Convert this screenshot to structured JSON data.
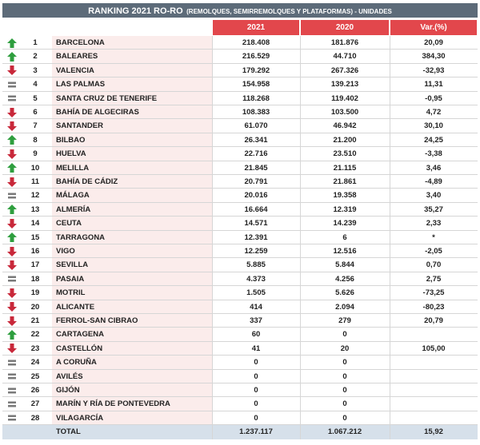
{
  "title": {
    "main": "RANKING 2021 RO-RO",
    "sub": "(REMOLQUES, SEMIRREMOLQUES Y PLATAFORMAS) - UNIDADES"
  },
  "table": {
    "header": [
      "2021",
      "2020",
      "Var.(%)"
    ],
    "rows": [
      {
        "trend": "up",
        "rank": 1,
        "name": "BARCELONA",
        "y2021": "218.408",
        "y2020": "181.876",
        "var": "20,09"
      },
      {
        "trend": "up",
        "rank": 2,
        "name": "BALEARES",
        "y2021": "216.529",
        "y2020": "44.710",
        "var": "384,30"
      },
      {
        "trend": "down",
        "rank": 3,
        "name": "VALENCIA",
        "y2021": "179.292",
        "y2020": "267.326",
        "var": "-32,93"
      },
      {
        "trend": "equal",
        "rank": 4,
        "name": "LAS PALMAS",
        "y2021": "154.958",
        "y2020": "139.213",
        "var": "11,31"
      },
      {
        "trend": "equal",
        "rank": 5,
        "name": "SANTA CRUZ DE TENERIFE",
        "y2021": "118.268",
        "y2020": "119.402",
        "var": "-0,95"
      },
      {
        "trend": "down",
        "rank": 6,
        "name": "BAHÍA DE ALGECIRAS",
        "y2021": "108.383",
        "y2020": "103.500",
        "var": "4,72"
      },
      {
        "trend": "down",
        "rank": 7,
        "name": "SANTANDER",
        "y2021": "61.070",
        "y2020": "46.942",
        "var": "30,10"
      },
      {
        "trend": "up",
        "rank": 8,
        "name": "BILBAO",
        "y2021": "26.341",
        "y2020": "21.200",
        "var": "24,25"
      },
      {
        "trend": "down",
        "rank": 9,
        "name": "HUELVA",
        "y2021": "22.716",
        "y2020": "23.510",
        "var": "-3,38"
      },
      {
        "trend": "up",
        "rank": 10,
        "name": "MELILLA",
        "y2021": "21.845",
        "y2020": "21.115",
        "var": "3,46"
      },
      {
        "trend": "down",
        "rank": 11,
        "name": "BAHÍA DE CÁDIZ",
        "y2021": "20.791",
        "y2020": "21.861",
        "var": "-4,89"
      },
      {
        "trend": "equal",
        "rank": 12,
        "name": "MÁLAGA",
        "y2021": "20.016",
        "y2020": "19.358",
        "var": "3,40"
      },
      {
        "trend": "up",
        "rank": 13,
        "name": "ALMERÍA",
        "y2021": "16.664",
        "y2020": "12.319",
        "var": "35,27"
      },
      {
        "trend": "down",
        "rank": 14,
        "name": "CEUTA",
        "y2021": "14.571",
        "y2020": "14.239",
        "var": "2,33"
      },
      {
        "trend": "up",
        "rank": 15,
        "name": "TARRAGONA",
        "y2021": "12.391",
        "y2020": "6",
        "var": "*"
      },
      {
        "trend": "down",
        "rank": 16,
        "name": "VIGO",
        "y2021": "12.259",
        "y2020": "12.516",
        "var": "-2,05"
      },
      {
        "trend": "down",
        "rank": 17,
        "name": "SEVILLA",
        "y2021": "5.885",
        "y2020": "5.844",
        "var": "0,70"
      },
      {
        "trend": "equal",
        "rank": 18,
        "name": "PASAIA",
        "y2021": "4.373",
        "y2020": "4.256",
        "var": "2,75"
      },
      {
        "trend": "down",
        "rank": 19,
        "name": "MOTRIL",
        "y2021": "1.505",
        "y2020": "5.626",
        "var": "-73,25"
      },
      {
        "trend": "down",
        "rank": 20,
        "name": "ALICANTE",
        "y2021": "414",
        "y2020": "2.094",
        "var": "-80,23"
      },
      {
        "trend": "down",
        "rank": 21,
        "name": "FERROL-SAN CIBRAO",
        "y2021": "337",
        "y2020": "279",
        "var": "20,79"
      },
      {
        "trend": "up",
        "rank": 22,
        "name": "CARTAGENA",
        "y2021": "60",
        "y2020": "0",
        "var": null
      },
      {
        "trend": "down",
        "rank": 23,
        "name": "CASTELLÓN",
        "y2021": "41",
        "y2020": "20",
        "var": "105,00"
      },
      {
        "trend": "equal",
        "rank": 24,
        "name": "A CORUÑA",
        "y2021": "0",
        "y2020": "0",
        "var": null
      },
      {
        "trend": "equal",
        "rank": 25,
        "name": "AVILÉS",
        "y2021": "0",
        "y2020": "0",
        "var": null
      },
      {
        "trend": "equal",
        "rank": 26,
        "name": "GIJÓN",
        "y2021": "0",
        "y2020": "0",
        "var": null
      },
      {
        "trend": "equal",
        "rank": 27,
        "name": "MARÍN Y RÍA DE PONTEVEDRA",
        "y2021": "0",
        "y2020": "0",
        "var": null
      },
      {
        "trend": "equal",
        "rank": 28,
        "name": "VILAGARCÍA",
        "y2021": "0",
        "y2020": "0",
        "var": null
      }
    ],
    "total": {
      "name": "TOTAL",
      "y2021": "1.237.117",
      "y2020": "1.067.212",
      "var": "15,92"
    }
  }
}
